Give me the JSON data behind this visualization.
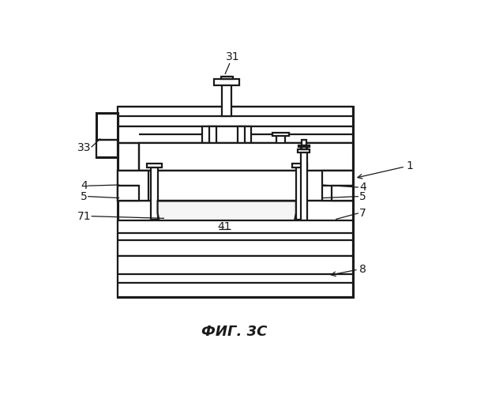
{
  "title": "ФИГ. 3С",
  "title_fontsize": 13,
  "background_color": "#ffffff",
  "line_color": "#1a1a1a",
  "lw": 1.6,
  "lw2": 2.2,
  "fs": 10
}
